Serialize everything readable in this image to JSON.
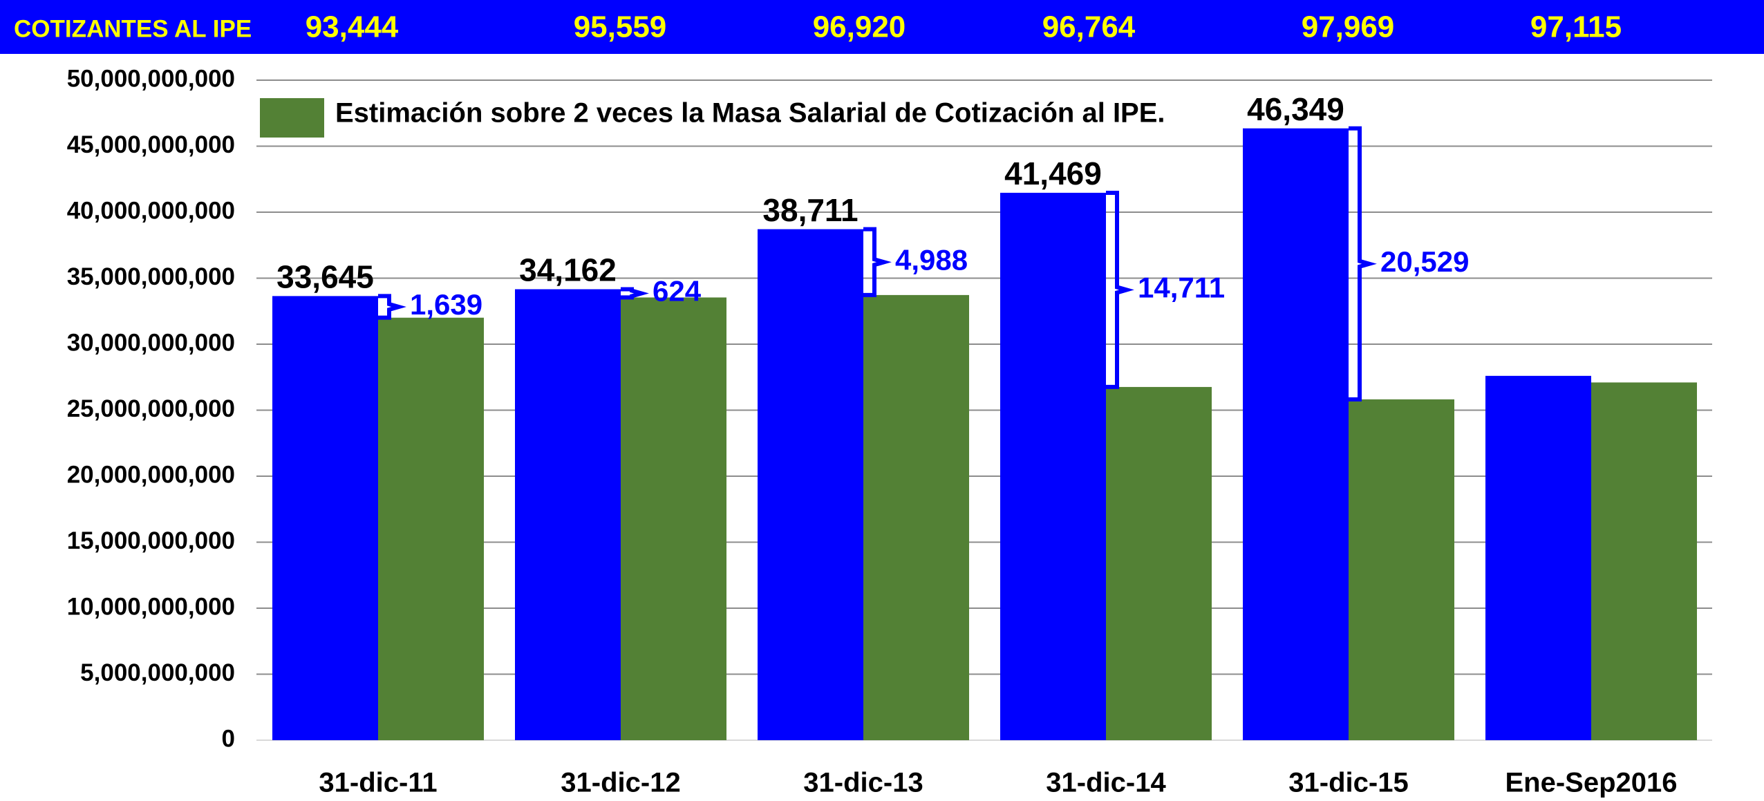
{
  "chart_data": {
    "type": "bar",
    "banner": {
      "label": "COTIZANTES AL IPE",
      "values": [
        "93,444",
        "95,559",
        "96,920",
        "96,764",
        "97,969",
        "97,115"
      ]
    },
    "categories": [
      "31-dic-11",
      "31-dic-12",
      "31-dic-13",
      "31-dic-14",
      "31-dic-15",
      "Ene-Sep2016"
    ],
    "series": [
      {
        "color": "#0000ff",
        "values": [
          33645000000,
          34162000000,
          38711000000,
          41469000000,
          46349000000,
          27600000000
        ],
        "value_labels": [
          "33,645",
          "34,162",
          "38,711",
          "41,469",
          "46,349",
          null
        ]
      },
      {
        "name": "Estimación sobre 2 veces la Masa Salarial de Cotización al IPE.",
        "color": "#538135",
        "values": [
          32006000000,
          33538000000,
          33723000000,
          26758000000,
          25820000000,
          27100000000
        ]
      }
    ],
    "differences": {
      "color": "#0000ff",
      "values": [
        1639000000,
        624000000,
        4988000000,
        14711000000,
        20529000000
      ],
      "value_labels": [
        "1,639",
        "624",
        "4,988",
        "14,711",
        "20,529"
      ]
    },
    "ylim": [
      0,
      50000000000
    ],
    "yticks": [
      0,
      {
        "value": 5000000000,
        "label": "5,000,000,000"
      },
      {
        "value": 10000000000,
        "label": "10,000,000,000"
      },
      {
        "value": 15000000000,
        "label": "15,000,000,000"
      },
      {
        "value": 20000000000,
        "label": "20,000,000,000"
      },
      {
        "value": 25000000000,
        "label": "25,000,000,000"
      },
      {
        "value": 30000000000,
        "label": "30,000,000,000"
      },
      {
        "value": 35000000000,
        "label": "35,000,000,000"
      },
      {
        "value": 40000000000,
        "label": "40,000,000,000"
      },
      {
        "value": 45000000000,
        "label": "45,000,000,000"
      },
      {
        "value": 50000000000,
        "label": "50,000,000,000"
      }
    ],
    "grid": true
  }
}
